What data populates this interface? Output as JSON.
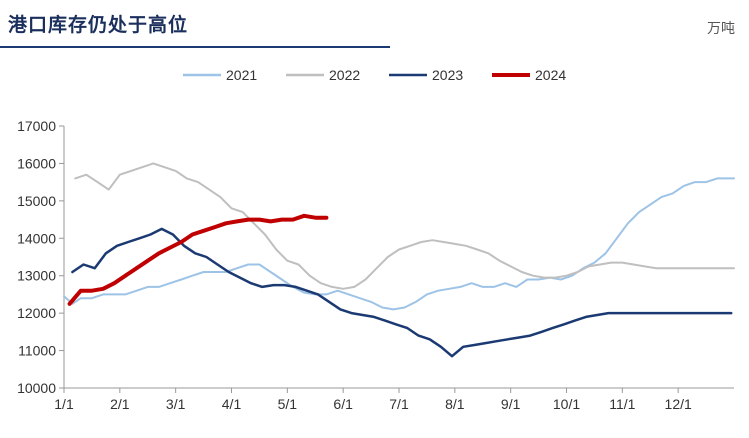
{
  "header": {
    "title": "港口库存仍处于高位",
    "unit": "万吨"
  },
  "chart_data": {
    "type": "line",
    "title": "港口库存仍处于高位",
    "ylabel": "万吨",
    "ylim": [
      10000,
      17000
    ],
    "yticks": [
      10000,
      11000,
      12000,
      13000,
      14000,
      15000,
      16000,
      17000
    ],
    "xticks": [
      "1/1",
      "2/1",
      "3/1",
      "4/1",
      "5/1",
      "6/1",
      "7/1",
      "8/1",
      "9/1",
      "10/1",
      "11/1",
      "12/1"
    ],
    "xlim": [
      0,
      12
    ],
    "legend_position": "top",
    "series": [
      {
        "name": "2021",
        "color": "#9dc3e6",
        "width": 2,
        "x": [
          0,
          0.15,
          0.3,
          0.5,
          0.7,
          0.9,
          1.1,
          1.3,
          1.5,
          1.7,
          1.9,
          2.1,
          2.3,
          2.5,
          2.7,
          2.9,
          3.1,
          3.3,
          3.5,
          3.7,
          3.9,
          4.1,
          4.3,
          4.5,
          4.7,
          4.9,
          5.1,
          5.3,
          5.5,
          5.7,
          5.9,
          6.1,
          6.3,
          6.5,
          6.7,
          6.9,
          7.1,
          7.3,
          7.5,
          7.7,
          7.9,
          8.1,
          8.3,
          8.5,
          8.7,
          8.9,
          9.1,
          9.3,
          9.5,
          9.7,
          9.9,
          10.1,
          10.3,
          10.5,
          10.7,
          10.9,
          11.1,
          11.3,
          11.5,
          11.7,
          11.9,
          12
        ],
        "y": [
          12450,
          12250,
          12400,
          12400,
          12500,
          12500,
          12500,
          12600,
          12700,
          12700,
          12800,
          12900,
          13000,
          13100,
          13100,
          13100,
          13200,
          13300,
          13300,
          13100,
          12900,
          12700,
          12550,
          12500,
          12500,
          12600,
          12500,
          12400,
          12300,
          12150,
          12100,
          12150,
          12300,
          12500,
          12600,
          12650,
          12700,
          12800,
          12700,
          12700,
          12800,
          12700,
          12900,
          12900,
          12950,
          12900,
          13000,
          13200,
          13350,
          13600,
          14000,
          14400,
          14700,
          14900,
          15100,
          15200,
          15400,
          15500,
          15500,
          15600,
          15600,
          15600
        ]
      },
      {
        "name": "2022",
        "color": "#bfbfbf",
        "width": 2,
        "x": [
          0.2,
          0.4,
          0.6,
          0.8,
          1.0,
          1.2,
          1.4,
          1.6,
          1.8,
          2.0,
          2.2,
          2.4,
          2.6,
          2.8,
          3.0,
          3.2,
          3.4,
          3.6,
          3.8,
          4.0,
          4.2,
          4.4,
          4.6,
          4.8,
          5.0,
          5.2,
          5.4,
          5.6,
          5.8,
          6.0,
          6.2,
          6.4,
          6.6,
          6.8,
          7.0,
          7.2,
          7.4,
          7.6,
          7.8,
          8.0,
          8.2,
          8.4,
          8.6,
          8.8,
          9.0,
          9.2,
          9.4,
          9.6,
          9.8,
          10.0,
          10.2,
          10.4,
          10.6,
          10.8,
          11.0,
          11.2,
          11.4,
          11.6,
          11.8,
          12.0
        ],
        "y": [
          15600,
          15700,
          15500,
          15300,
          15700,
          15800,
          15900,
          16000,
          15900,
          15800,
          15600,
          15500,
          15300,
          15100,
          14800,
          14700,
          14400,
          14100,
          13700,
          13400,
          13300,
          13000,
          12800,
          12700,
          12650,
          12700,
          12900,
          13200,
          13500,
          13700,
          13800,
          13900,
          13950,
          13900,
          13850,
          13800,
          13700,
          13600,
          13400,
          13250,
          13100,
          13000,
          12950,
          12950,
          13000,
          13100,
          13250,
          13300,
          13350,
          13350,
          13300,
          13250,
          13200,
          13200,
          13200,
          13200,
          13200,
          13200,
          13200,
          13200
        ]
      },
      {
        "name": "2023",
        "color": "#1b3a73",
        "width": 2.5,
        "x": [
          0.15,
          0.35,
          0.55,
          0.75,
          0.95,
          1.15,
          1.35,
          1.55,
          1.75,
          1.95,
          2.15,
          2.35,
          2.55,
          2.75,
          2.95,
          3.15,
          3.35,
          3.55,
          3.75,
          3.95,
          4.15,
          4.35,
          4.55,
          4.75,
          4.95,
          5.15,
          5.35,
          5.55,
          5.75,
          5.95,
          6.15,
          6.35,
          6.55,
          6.75,
          6.95,
          7.15,
          7.35,
          7.55,
          7.75,
          7.95,
          8.15,
          8.35,
          8.55,
          8.75,
          8.95,
          9.15,
          9.35,
          9.55,
          9.75,
          9.95,
          10.15,
          10.35,
          10.55,
          10.75,
          10.95,
          11.15,
          11.35,
          11.55,
          11.75,
          11.95
        ],
        "y": [
          13100,
          13300,
          13200,
          13600,
          13800,
          13900,
          14000,
          14100,
          14250,
          14100,
          13800,
          13600,
          13500,
          13300,
          13100,
          12950,
          12800,
          12700,
          12750,
          12750,
          12700,
          12600,
          12500,
          12300,
          12100,
          12000,
          11950,
          11900,
          11800,
          11700,
          11600,
          11400,
          11300,
          11100,
          10850,
          11100,
          11150,
          11200,
          11250,
          11300,
          11350,
          11400,
          11500,
          11600,
          11700,
          11800,
          11900,
          11950,
          12000,
          12000,
          12000,
          12000,
          12000,
          12000,
          12000,
          12000,
          12000,
          12000,
          12000,
          12000
        ]
      },
      {
        "name": "2024",
        "color": "#c00000",
        "width": 4,
        "x": [
          0.1,
          0.3,
          0.5,
          0.7,
          0.9,
          1.1,
          1.3,
          1.5,
          1.7,
          1.9,
          2.1,
          2.3,
          2.5,
          2.7,
          2.9,
          3.1,
          3.3,
          3.5,
          3.7,
          3.9,
          4.1,
          4.3,
          4.5,
          4.7
        ],
        "y": [
          12250,
          12600,
          12600,
          12650,
          12800,
          13000,
          13200,
          13400,
          13600,
          13750,
          13900,
          14100,
          14200,
          14300,
          14400,
          14450,
          14500,
          14500,
          14450,
          14500,
          14500,
          14600,
          14550,
          14550
        ]
      }
    ]
  }
}
